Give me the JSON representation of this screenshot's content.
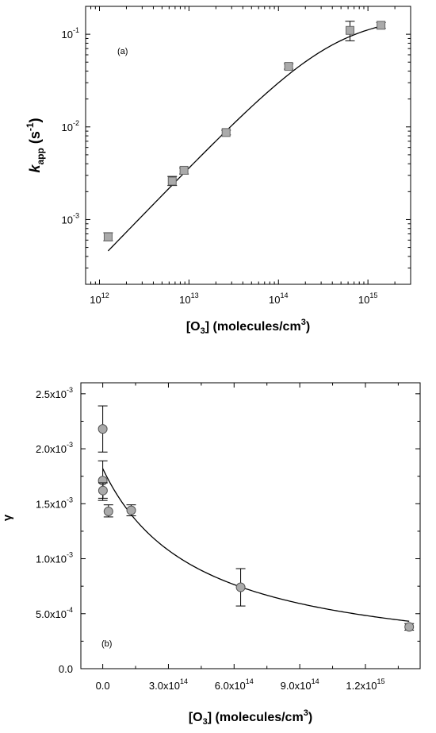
{
  "chart_data": [
    {
      "type": "scatter",
      "panel_label": "(a)",
      "xlabel": {
        "main": "[O",
        "sub": "3",
        "mid": "] (molecules/cm",
        "sup": "3",
        "end": ")"
      },
      "ylabel": {
        "main": "k",
        "sub": "app",
        "mid": " (s",
        "sup": "-1",
        "end": ")"
      },
      "xscale": "log",
      "yscale": "log",
      "xlim": [
        700000000000.0,
        3000000000000000.0
      ],
      "ylim": [
        0.0002,
        0.2
      ],
      "x_ticks": [
        {
          "value": 1000000000000.0,
          "base": "10",
          "exp": "12"
        },
        {
          "value": 10000000000000.0,
          "base": "10",
          "exp": "13"
        },
        {
          "value": 100000000000000.0,
          "base": "10",
          "exp": "14"
        },
        {
          "value": 1000000000000000.0,
          "base": "10",
          "exp": "15"
        }
      ],
      "y_ticks": [
        {
          "value": 0.001,
          "base": "10",
          "exp": "-3"
        },
        {
          "value": 0.01,
          "base": "10",
          "exp": "-2"
        },
        {
          "value": 0.1,
          "base": "10",
          "exp": "-1"
        }
      ],
      "series": [
        {
          "marker": "square",
          "color": "#aaaaaa",
          "points": [
            {
              "x": 1250000000000.0,
              "y": 0.00065,
              "yerr": [
                0.00059,
                0.00072
              ],
              "xerr": [
                1150000000000.0,
                1350000000000.0
              ]
            },
            {
              "x": 6500000000000.0,
              "y": 0.0026,
              "yerr": [
                0.00233,
                0.00292
              ],
              "xerr": [
                6000000000000.0,
                7000000000000.0
              ]
            },
            {
              "x": 8800000000000.0,
              "y": 0.0034,
              "yerr": [
                0.0031,
                0.0036
              ],
              "xerr": [
                8000000000000.0,
                9600000000000.0
              ]
            },
            {
              "x": 26000000000000.0,
              "y": 0.0087,
              "yerr": [
                0.0082,
                0.0092
              ],
              "xerr": [
                24000000000000.0,
                28000000000000.0
              ]
            },
            {
              "x": 130000000000000.0,
              "y": 0.045,
              "yerr": [
                0.042,
                0.048
              ],
              "xerr": [
                120000000000000.0,
                140000000000000.0
              ]
            },
            {
              "x": 630000000000000.0,
              "y": 0.11,
              "yerr": [
                0.085,
                0.138
              ],
              "xerr": [
                590000000000000.0,
                680000000000000.0
              ]
            },
            {
              "x": 1400000000000000.0,
              "y": 0.125,
              "yerr": [
                0.116,
                0.134
              ],
              "xerr": [
                1300000000000000.0,
                1500000000000000.0
              ]
            }
          ]
        }
      ],
      "fit": {
        "type": "line",
        "color": "#000000",
        "kmax": 0.16,
        "K": 2.3e-15
      }
    },
    {
      "type": "scatter",
      "panel_label": "(b)",
      "xlabel": {
        "main": "[O",
        "sub": "3",
        "mid": "] (molecules/cm",
        "sup": "3",
        "end": ")"
      },
      "ylabel": {
        "main": "γ"
      },
      "xscale": "linear",
      "yscale": "linear",
      "xlim": [
        -100000000000000.0,
        1450000000000000.0
      ],
      "ylim": [
        0,
        0.0026
      ],
      "x_ticks": [
        {
          "value": 0,
          "mant": "0.0",
          "exp": ""
        },
        {
          "value": 300000000000000.0,
          "mant": "3.0x10",
          "exp": "14"
        },
        {
          "value": 600000000000000.0,
          "mant": "6.0x10",
          "exp": "14"
        },
        {
          "value": 900000000000000.0,
          "mant": "9.0x10",
          "exp": "14"
        },
        {
          "value": 1200000000000000.0,
          "mant": "1.2x10",
          "exp": "15"
        }
      ],
      "y_ticks": [
        {
          "value": 0,
          "mant": "0.0",
          "exp": ""
        },
        {
          "value": 0.0005,
          "mant": "5.0x10",
          "exp": "-4"
        },
        {
          "value": 0.001,
          "mant": "1.0x10",
          "exp": "-3"
        },
        {
          "value": 0.0015,
          "mant": "1.5x10",
          "exp": "-3"
        },
        {
          "value": 0.002,
          "mant": "2.0x10",
          "exp": "-3"
        },
        {
          "value": 0.0025,
          "mant": "2.5x10",
          "exp": "-3"
        }
      ],
      "series": [
        {
          "marker": "circle",
          "color": "#aaaaaa",
          "points": [
            {
              "x": 0,
              "y": 0.00218,
              "yerr": [
                0.00197,
                0.00239
              ]
            },
            {
              "x": 0,
              "y": 0.00171,
              "yerr": [
                0.00153,
                0.00189
              ]
            },
            {
              "x": 1000000000000.0,
              "y": 0.00162,
              "yerr": [
                0.00155,
                0.00169
              ]
            },
            {
              "x": 26000000000000.0,
              "y": 0.00143,
              "yerr": [
                0.00138,
                0.00149
              ]
            },
            {
              "x": 130000000000000.0,
              "y": 0.00144,
              "yerr": [
                0.00139,
                0.00149
              ]
            },
            {
              "x": 630000000000000.0,
              "y": 0.00074,
              "yerr": [
                0.00057,
                0.00091
              ]
            },
            {
              "x": 1400000000000000.0,
              "y": 0.00038,
              "yerr": [
                0.00035,
                0.00041
              ]
            }
          ]
        }
      ],
      "fit": {
        "type": "line",
        "color": "#000000",
        "g0": 0.00182,
        "K": 2.3e-15
      }
    }
  ]
}
